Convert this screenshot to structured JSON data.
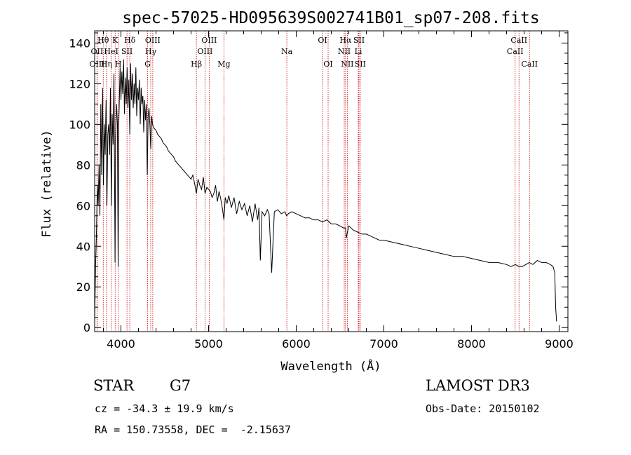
{
  "chart_data": {
    "type": "line",
    "title": "spec-57025-HD095639S002741B01_sp07-208.fits",
    "xlabel": "Wavelength (Å)",
    "ylabel": "Flux (relative)",
    "xlim": [
      3700,
      9100
    ],
    "ylim": [
      -2,
      146
    ],
    "xticks": [
      4000,
      5000,
      6000,
      7000,
      8000,
      9000
    ],
    "yticks": [
      0,
      20,
      40,
      60,
      80,
      100,
      120,
      140
    ],
    "spectrum": {
      "x": [
        3700,
        3710,
        3720,
        3730,
        3740,
        3750,
        3760,
        3770,
        3780,
        3790,
        3800,
        3810,
        3820,
        3830,
        3840,
        3850,
        3860,
        3870,
        3880,
        3890,
        3900,
        3910,
        3920,
        3930,
        3933,
        3940,
        3950,
        3960,
        3968,
        3975,
        3990,
        4000,
        4010,
        4020,
        4030,
        4040,
        4050,
        4060,
        4070,
        4080,
        4090,
        4101,
        4110,
        4120,
        4130,
        4140,
        4150,
        4160,
        4170,
        4180,
        4190,
        4200,
        4210,
        4220,
        4230,
        4240,
        4250,
        4260,
        4270,
        4280,
        4290,
        4300,
        4310,
        4320,
        4330,
        4340,
        4350,
        4360,
        4380,
        4400,
        4420,
        4440,
        4460,
        4480,
        4500,
        4520,
        4540,
        4560,
        4580,
        4600,
        4620,
        4640,
        4660,
        4680,
        4700,
        4720,
        4740,
        4760,
        4780,
        4800,
        4820,
        4840,
        4861,
        4880,
        4900,
        4920,
        4940,
        4960,
        4980,
        5000,
        5020,
        5040,
        5060,
        5080,
        5100,
        5120,
        5140,
        5160,
        5175,
        5190,
        5210,
        5230,
        5260,
        5290,
        5320,
        5350,
        5380,
        5410,
        5440,
        5470,
        5500,
        5530,
        5560,
        5575,
        5590,
        5610,
        5640,
        5670,
        5690,
        5720,
        5750,
        5790,
        5830,
        5870,
        5890,
        5910,
        5950,
        6000,
        6050,
        6100,
        6150,
        6200,
        6250,
        6300,
        6350,
        6400,
        6450,
        6500,
        6540,
        6556,
        6563,
        6570,
        6600,
        6650,
        6700,
        6750,
        6800,
        6850,
        6900,
        6950,
        7000,
        7100,
        7200,
        7300,
        7400,
        7500,
        7600,
        7700,
        7800,
        7900,
        8000,
        8100,
        8200,
        8300,
        8400,
        8450,
        8500,
        8540,
        8580,
        8620,
        8660,
        8700,
        8750,
        8800,
        8850,
        8900,
        8930,
        8950,
        8960,
        8970
      ],
      "y": [
        2,
        30,
        45,
        70,
        60,
        80,
        55,
        110,
        75,
        118,
        70,
        100,
        85,
        112,
        60,
        95,
        100,
        85,
        118,
        60,
        105,
        90,
        125,
        50,
        32,
        95,
        110,
        100,
        30,
        100,
        128,
        112,
        126,
        115,
        132,
        105,
        123,
        110,
        128,
        108,
        122,
        95,
        130,
        112,
        125,
        108,
        120,
        110,
        128,
        104,
        118,
        112,
        122,
        100,
        118,
        110,
        114,
        96,
        112,
        102,
        110,
        75,
        104,
        108,
        100,
        88,
        104,
        100,
        98,
        97,
        95,
        94,
        93,
        91,
        90,
        89,
        87,
        86,
        85,
        84,
        82,
        81,
        80,
        79,
        78,
        77,
        76,
        75,
        74,
        73,
        75,
        71,
        66,
        73,
        70,
        68,
        74,
        66,
        69,
        68,
        67,
        64,
        66,
        70,
        62,
        67,
        63,
        58,
        53,
        64,
        61,
        65,
        59,
        64,
        56,
        62,
        58,
        61,
        55,
        60,
        52,
        61,
        53,
        59,
        33,
        57,
        55,
        58,
        56,
        27,
        57,
        58,
        56,
        57,
        55,
        56,
        57,
        56,
        55,
        54,
        54,
        53,
        53,
        52,
        53,
        51,
        51,
        50,
        49,
        49,
        49,
        44,
        50,
        48,
        47,
        46,
        46,
        45,
        44,
        43,
        43,
        42,
        41,
        40,
        39,
        38,
        37,
        36,
        35,
        35,
        34,
        33,
        32,
        32,
        31,
        30,
        31,
        30,
        30,
        31,
        32,
        31,
        33,
        32,
        32,
        31,
        30,
        27,
        10,
        3
      ]
    },
    "lines": [
      {
        "label": "Hθ",
        "x": 3798,
        "row": 1
      },
      {
        "label": "OII",
        "x": 3727,
        "row": 2
      },
      {
        "label": "OIII",
        "x": 3727,
        "row": 3
      },
      {
        "label": "K",
        "x": 3934,
        "row": 1
      },
      {
        "label": "HeI",
        "x": 3889,
        "row": 2
      },
      {
        "label": "Hη",
        "x": 3835,
        "row": 3
      },
      {
        "label": "SII",
        "x": 4069,
        "row": 2
      },
      {
        "label": "H",
        "x": 3969,
        "row": 3
      },
      {
        "label": "Hδ",
        "x": 4101,
        "row": 1
      },
      {
        "label": "OIII",
        "x": 4363,
        "row": 1
      },
      {
        "label": "Hγ",
        "x": 4340,
        "row": 2
      },
      {
        "label": "G",
        "x": 4304,
        "row": 3
      },
      {
        "label": "Hβ",
        "x": 4861,
        "row": 3
      },
      {
        "label": "OIII",
        "x": 5007,
        "row": 1
      },
      {
        "label": "OIII",
        "x": 4959,
        "row": 2
      },
      {
        "label": "Mg",
        "x": 5175,
        "row": 3
      },
      {
        "label": "Na",
        "x": 5893,
        "row": 2
      },
      {
        "label": "OI",
        "x": 6300,
        "row": 1
      },
      {
        "label": "OI",
        "x": 6364,
        "row": 3
      },
      {
        "label": "Hα",
        "x": 6563,
        "row": 1
      },
      {
        "label": "SII",
        "x": 6716,
        "row": 1
      },
      {
        "label": "NII",
        "x": 6548,
        "row": 2
      },
      {
        "label": "Li",
        "x": 6708,
        "row": 2
      },
      {
        "label": "NII",
        "x": 6583,
        "row": 3
      },
      {
        "label": "SII",
        "x": 6731,
        "row": 3
      },
      {
        "label": "CaII",
        "x": 8542,
        "row": 1
      },
      {
        "label": "CaII",
        "x": 8498,
        "row": 2
      },
      {
        "label": "CaII",
        "x": 8662,
        "row": 3
      }
    ]
  },
  "info": {
    "class_label": "STAR",
    "subclass": "G7",
    "survey": "LAMOST DR3",
    "cz": "cz = -34.3 ± 19.9 km/s",
    "obs_date": "Obs-Date: 20150102",
    "coords": "RA = 150.73558, DEC =  -2.15637"
  },
  "colors": {
    "line_marker": "#cc0000",
    "spectrum": "#000000"
  }
}
